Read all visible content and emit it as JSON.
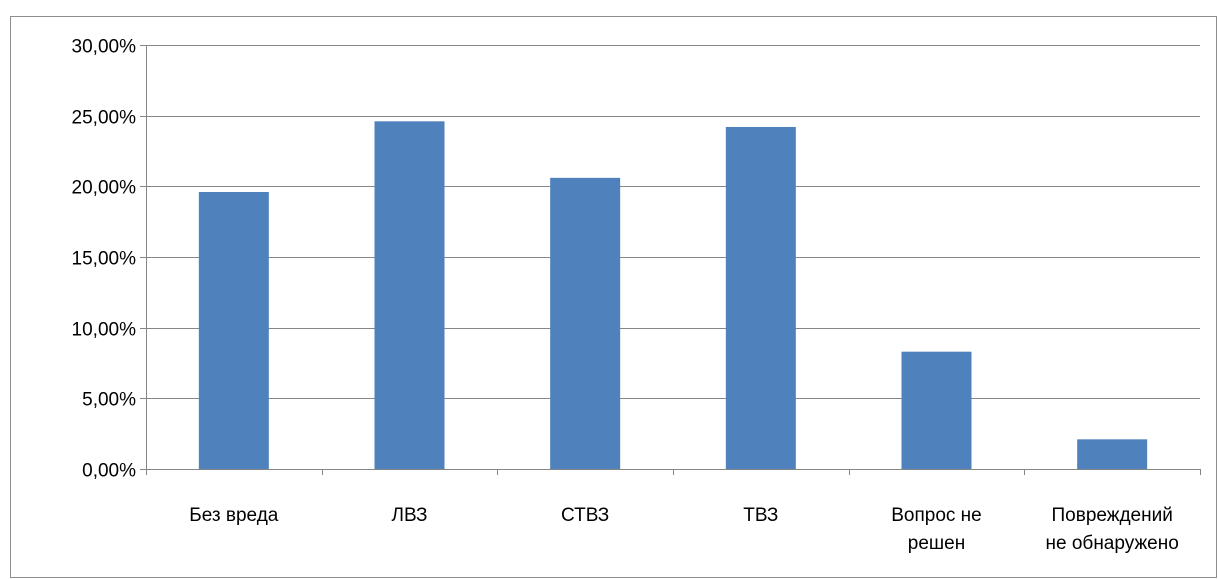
{
  "chart_data": {
    "type": "bar",
    "title": "",
    "xlabel": "",
    "ylabel": "",
    "categories": [
      [
        "Без вреда"
      ],
      [
        "ЛВЗ"
      ],
      [
        "СТВЗ"
      ],
      [
        "ТВЗ"
      ],
      [
        "Вопрос не",
        "решен"
      ],
      [
        "Повреждений",
        "не обнаружено"
      ]
    ],
    "values": [
      19.6,
      24.6,
      20.6,
      24.2,
      8.3,
      2.1
    ],
    "value_unit": "%",
    "ylim": [
      0,
      30
    ],
    "yticks": [
      0,
      5,
      10,
      15,
      20,
      25,
      30
    ],
    "ytick_labels": [
      "0,00%",
      "5,00%",
      "10,00%",
      "15,00%",
      "20,00%",
      "25,00%",
      "30,00%"
    ],
    "grid": true,
    "legend": "none",
    "bar_color": "#4f81bd"
  }
}
